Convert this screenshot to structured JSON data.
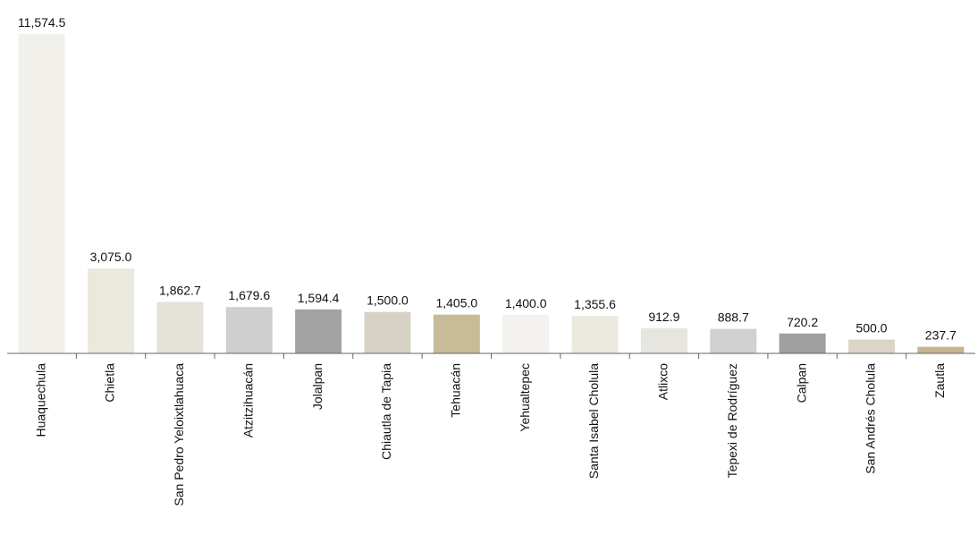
{
  "chart_data": {
    "type": "bar",
    "title": "",
    "xlabel": "",
    "ylabel": "",
    "ylim": [
      0,
      11574.5
    ],
    "grid": false,
    "legend": "none",
    "categories": [
      "Huaquechula",
      "Chietla",
      "San Pedro Yeloixtlahuaca",
      "Atzitzihuacán",
      "Jolalpan",
      "Chiautla de Tapia",
      "Tehuacán",
      "Yehualtepec",
      "Santa Isabel Cholula",
      "Atlixco",
      "Tepexi de Rodríguez",
      "Calpan",
      "San Andrés Cholula",
      "Zautla"
    ],
    "values": [
      11574.5,
      3075.0,
      1862.7,
      1679.6,
      1594.4,
      1500.0,
      1405.0,
      1400.0,
      1355.6,
      912.9,
      888.7,
      720.2,
      500.0,
      237.7
    ],
    "value_labels": [
      "11,574.5",
      "3,075.0",
      "1,862.7",
      "1,679.6",
      "1,594.4",
      "1,500.0",
      "1,405.0",
      "1,400.0",
      "1,355.6",
      "912.9",
      "888.7",
      "720.2",
      "500.0",
      "237.7"
    ],
    "colors": [
      "#f1f0eb",
      "#ebe8dc",
      "#e5e2da",
      "#cfcfcf",
      "#a3a3a3",
      "#d8d1c6",
      "#c8bb98",
      "#f3f2ef",
      "#ece9df",
      "#e7e5df",
      "#d0d0d0",
      "#9f9f9f",
      "#dcd4c9",
      "#c5b48d"
    ],
    "axis_color": "#666666"
  }
}
